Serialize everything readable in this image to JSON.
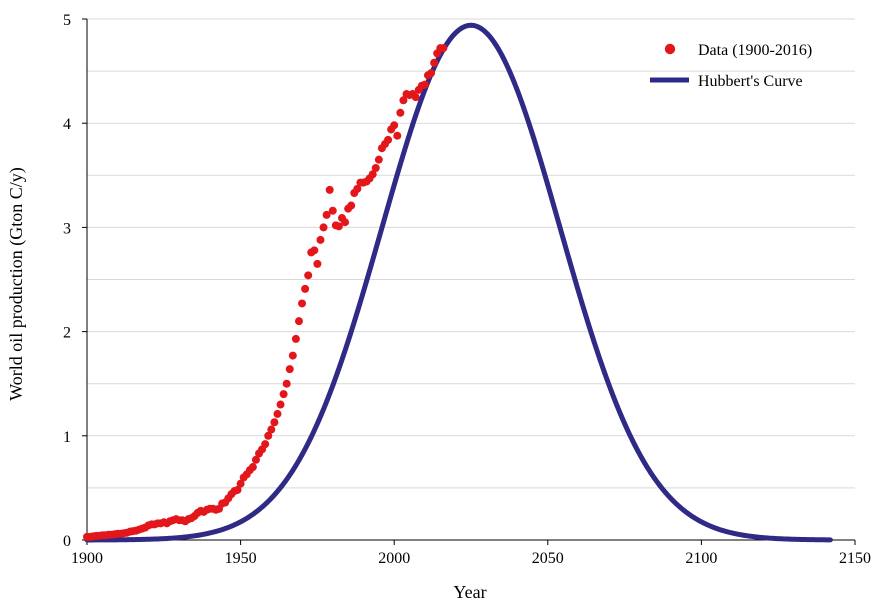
{
  "chart_data": {
    "type": "scatter",
    "xlabel": "Year",
    "ylabel": "World oil production (Gton C/y)",
    "xlim": [
      1900,
      2150
    ],
    "ylim": [
      0,
      5
    ],
    "xticks": [
      1900,
      1950,
      2000,
      2050,
      2100,
      2150
    ],
    "yticks": [
      0,
      1,
      2,
      3,
      4,
      5
    ],
    "minor_grid_y": [
      0.5,
      1.5,
      2.5,
      3.5,
      4.5
    ],
    "grid": "horizontal",
    "legend_position": "top-right",
    "colors": {
      "data": "#e3171b",
      "curve": "#2e2a85",
      "grid": "#d9d9d9"
    },
    "series": [
      {
        "name": "Data (1900-2016)",
        "kind": "scatter",
        "color": "#e3171b",
        "x": [
          1900,
          1901,
          1902,
          1903,
          1904,
          1905,
          1906,
          1907,
          1908,
          1909,
          1910,
          1911,
          1912,
          1913,
          1914,
          1915,
          1916,
          1917,
          1918,
          1919,
          1920,
          1921,
          1922,
          1923,
          1924,
          1925,
          1926,
          1927,
          1928,
          1929,
          1930,
          1931,
          1932,
          1933,
          1934,
          1935,
          1936,
          1937,
          1938,
          1939,
          1940,
          1941,
          1942,
          1943,
          1944,
          1945,
          1946,
          1947,
          1948,
          1949,
          1950,
          1951,
          1952,
          1953,
          1954,
          1955,
          1956,
          1957,
          1958,
          1959,
          1960,
          1961,
          1962,
          1963,
          1964,
          1965,
          1966,
          1967,
          1968,
          1969,
          1970,
          1971,
          1972,
          1973,
          1974,
          1975,
          1976,
          1977,
          1978,
          1979,
          1980,
          1981,
          1982,
          1983,
          1984,
          1985,
          1986,
          1987,
          1988,
          1989,
          1990,
          1991,
          1992,
          1993,
          1994,
          1995,
          1996,
          1997,
          1998,
          1999,
          2000,
          2001,
          2002,
          2003,
          2004,
          2005,
          2006,
          2007,
          2008,
          2009,
          2010,
          2011,
          2012,
          2013,
          2014,
          2015,
          2016
        ],
        "y": [
          0.03,
          0.03,
          0.035,
          0.04,
          0.04,
          0.045,
          0.045,
          0.05,
          0.05,
          0.055,
          0.06,
          0.06,
          0.065,
          0.07,
          0.08,
          0.085,
          0.09,
          0.1,
          0.11,
          0.12,
          0.14,
          0.15,
          0.15,
          0.16,
          0.16,
          0.17,
          0.16,
          0.18,
          0.19,
          0.2,
          0.19,
          0.19,
          0.18,
          0.2,
          0.21,
          0.23,
          0.26,
          0.28,
          0.27,
          0.29,
          0.3,
          0.3,
          0.29,
          0.3,
          0.35,
          0.36,
          0.4,
          0.44,
          0.47,
          0.48,
          0.54,
          0.6,
          0.63,
          0.67,
          0.7,
          0.77,
          0.83,
          0.87,
          0.92,
          1.0,
          1.06,
          1.13,
          1.21,
          1.3,
          1.4,
          1.5,
          1.64,
          1.77,
          1.93,
          2.1,
          2.27,
          2.41,
          2.54,
          2.76,
          2.78,
          2.65,
          2.88,
          3.0,
          3.12,
          3.36,
          3.16,
          3.02,
          3.01,
          3.09,
          3.05,
          3.18,
          3.21,
          3.33,
          3.37,
          3.43,
          3.43,
          3.44,
          3.47,
          3.51,
          3.57,
          3.65,
          3.76,
          3.8,
          3.84,
          3.94,
          3.98,
          3.88,
          4.1,
          4.22,
          4.28,
          4.27,
          4.28,
          4.25,
          4.32,
          4.36,
          4.37,
          4.46,
          4.48,
          4.58,
          4.67,
          4.72,
          4.72
        ]
      },
      {
        "name": "Hubbert's Curve",
        "kind": "gaussian",
        "color": "#2e2a85",
        "peak_year": 2025,
        "peak_value": 4.94,
        "sigma_years": 29,
        "x_start": 1900,
        "x_end": 2142
      }
    ]
  }
}
